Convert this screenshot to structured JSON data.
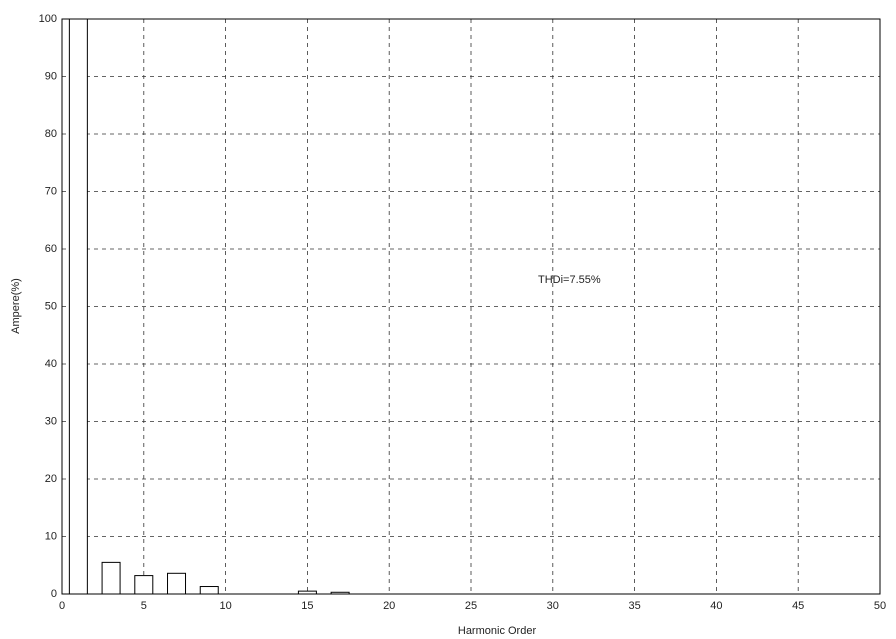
{
  "chart_data": {
    "type": "bar",
    "x_label": "Harmonic Order",
    "y_label": "Ampere(%)",
    "annotation": "THDi=7.55%",
    "x": [
      1,
      3,
      5,
      7,
      9,
      15,
      17
    ],
    "values": [
      100,
      5.5,
      3.2,
      3.6,
      1.3,
      0.5,
      0.3
    ],
    "color": "#ffffff",
    "xlim": [
      0,
      50
    ],
    "xticks": [
      0,
      5,
      10,
      15,
      20,
      25,
      30,
      35,
      40,
      45,
      50
    ],
    "ylim": [
      0,
      100
    ],
    "yticks": [
      0,
      10,
      20,
      30,
      40,
      50,
      60,
      70,
      80,
      90,
      100
    ],
    "grid": true
  }
}
